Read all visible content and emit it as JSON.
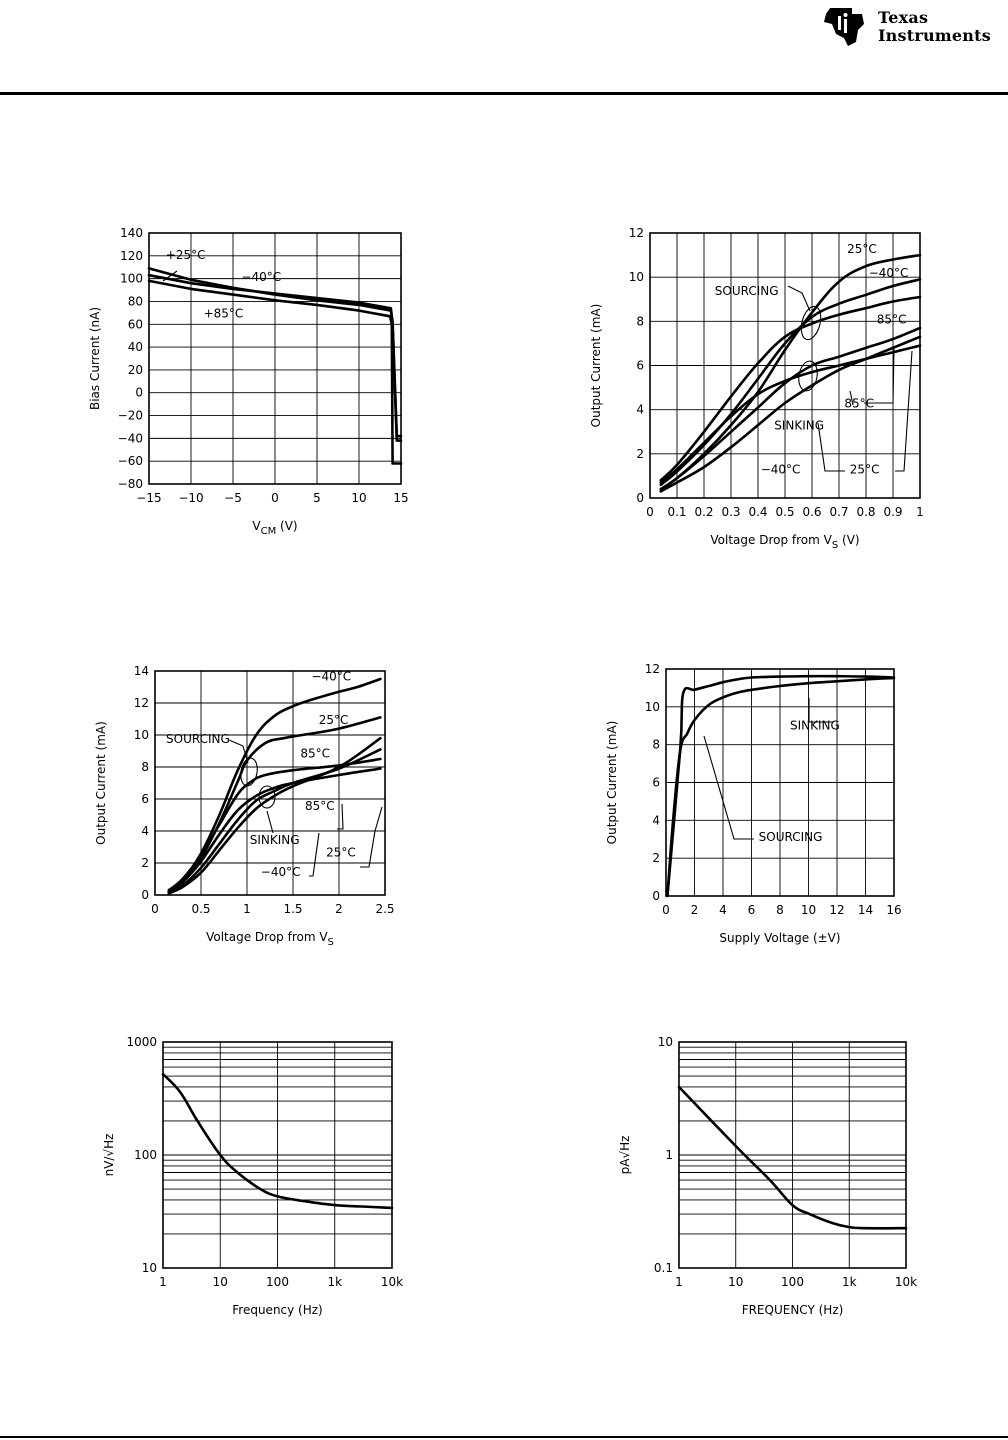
{
  "brand": {
    "line1": "Texas",
    "line2": "Instruments",
    "colors": {
      "logo": "#000000",
      "rule": "#000000"
    }
  },
  "chart_data": [
    {
      "id": "c1",
      "type": "line",
      "grid": true,
      "title": "",
      "xlabel": "V",
      "xlabel_sub": "CM",
      "xlabel_tail": " (V)",
      "ylabel": "Bias Current (nA)",
      "xlim": [
        -15,
        15
      ],
      "ylim": [
        -80,
        140
      ],
      "xticks": [
        -15,
        -10,
        -5,
        0,
        5,
        10,
        15
      ],
      "xticklabels": [
        "−15",
        "−10",
        "−5",
        "0",
        "5",
        "10",
        "15"
      ],
      "yticks": [
        -80,
        -60,
        -40,
        -20,
        0,
        20,
        40,
        60,
        80,
        100,
        120,
        140
      ],
      "yticklabels": [
        "−80",
        "−60",
        "−40",
        "−20",
        "0",
        "20",
        "40",
        "60",
        "80",
        "100",
        "120",
        "140"
      ],
      "series": [
        {
          "name": "+25°C",
          "x": [
            -15,
            -10,
            -5,
            0,
            5,
            10,
            13.8,
            14,
            14.5,
            15
          ],
          "y": [
            109,
            99,
            92,
            86,
            81,
            77,
            72,
            62,
            -38,
            -38
          ]
        },
        {
          "name": "−40°C",
          "x": [
            -15,
            -10,
            -5,
            0,
            5,
            10,
            13.8,
            14,
            14.5,
            15
          ],
          "y": [
            103,
            96,
            91,
            87,
            83,
            79,
            74,
            60,
            -42,
            -42
          ]
        },
        {
          "name": "+85°C",
          "x": [
            -15,
            -10,
            -5,
            0,
            5,
            10,
            13.7,
            13.9,
            14,
            15
          ],
          "y": [
            98,
            91,
            86,
            81,
            77,
            72,
            67,
            60,
            -62,
            -62
          ]
        }
      ],
      "annotations": [
        {
          "text": "+25°C",
          "x": -13,
          "y": 117
        },
        {
          "text": "−40°C",
          "x": -4,
          "y": 98
        },
        {
          "text": "+85°C",
          "x": -8.5,
          "y": 66
        }
      ]
    },
    {
      "id": "c2",
      "type": "line",
      "grid": true,
      "title": "",
      "xlabel": "Voltage Drop from V",
      "xlabel_sub": "S",
      "xlabel_tail": " (V)",
      "ylabel": "Output Current (mA)",
      "xlim": [
        0,
        1
      ],
      "ylim": [
        0,
        12
      ],
      "xticks": [
        0,
        0.1,
        0.2,
        0.3,
        0.4,
        0.5,
        0.6,
        0.7,
        0.8,
        0.9,
        1
      ],
      "xticklabels": [
        "0",
        "0.1",
        "0.2",
        "0.3",
        "0.4",
        "0.5",
        "0.6",
        "0.7",
        "0.8",
        "0.9",
        "1"
      ],
      "yticks": [
        0,
        2,
        4,
        6,
        8,
        10,
        12
      ],
      "yticklabels": [
        "0",
        "2",
        "4",
        "6",
        "8",
        "10",
        "12"
      ],
      "series": [
        {
          "name": "SOURCING 25°C",
          "x": [
            0.04,
            0.1,
            0.2,
            0.3,
            0.4,
            0.5,
            0.6,
            0.7,
            0.8,
            0.9,
            1
          ],
          "y": [
            0.4,
            0.9,
            2.0,
            3.3,
            4.8,
            6.7,
            8.4,
            9.8,
            10.5,
            10.8,
            11.0
          ]
        },
        {
          "name": "SOURCING −40°C",
          "x": [
            0.04,
            0.1,
            0.2,
            0.3,
            0.4,
            0.5,
            0.6,
            0.7,
            0.8,
            0.9,
            1
          ],
          "y": [
            0.6,
            1.2,
            2.4,
            3.8,
            5.4,
            7.0,
            8.2,
            8.8,
            9.2,
            9.6,
            9.9
          ]
        },
        {
          "name": "SOURCING 85°C",
          "x": [
            0.04,
            0.1,
            0.2,
            0.3,
            0.4,
            0.5,
            0.6,
            0.7,
            0.8,
            0.9,
            1
          ],
          "y": [
            0.8,
            1.5,
            3.0,
            4.6,
            6.1,
            7.3,
            7.9,
            8.3,
            8.6,
            8.9,
            9.1
          ]
        },
        {
          "name": "SINKING 85°C",
          "x": [
            0.04,
            0.1,
            0.2,
            0.3,
            0.4,
            0.5,
            0.6,
            0.7,
            0.8,
            0.9,
            1
          ],
          "y": [
            0.7,
            1.3,
            2.5,
            3.7,
            4.7,
            5.3,
            5.7,
            6.0,
            6.3,
            6.6,
            6.9
          ]
        },
        {
          "name": "SINKING −40°C",
          "x": [
            0.04,
            0.1,
            0.2,
            0.3,
            0.4,
            0.5,
            0.6,
            0.7,
            0.8,
            0.9,
            1
          ],
          "y": [
            0.4,
            0.9,
            1.9,
            3.0,
            4.1,
            5.2,
            6.0,
            6.4,
            6.8,
            7.2,
            7.7
          ]
        },
        {
          "name": "SINKING 25°C",
          "x": [
            0.04,
            0.1,
            0.2,
            0.3,
            0.4,
            0.5,
            0.6,
            0.7,
            0.8,
            0.9,
            1
          ],
          "y": [
            0.3,
            0.7,
            1.4,
            2.3,
            3.3,
            4.3,
            5.1,
            5.8,
            6.3,
            6.8,
            7.3
          ]
        }
      ],
      "annotations": [
        {
          "text": "25°C",
          "x": 0.73,
          "y": 11.1
        },
        {
          "text": "−40°C",
          "x": 0.81,
          "y": 10.0
        },
        {
          "text": "SOURCING",
          "x": 0.24,
          "y": 9.2
        },
        {
          "text": "85°C",
          "x": 0.84,
          "y": 7.9
        },
        {
          "text": "85°C",
          "x": 0.72,
          "y": 4.1
        },
        {
          "text": "SINKING",
          "x": 0.46,
          "y": 3.1
        },
        {
          "text": "−40°C",
          "x": 0.41,
          "y": 1.1
        },
        {
          "text": "25°C",
          "x": 0.74,
          "y": 1.1
        }
      ]
    },
    {
      "id": "c3",
      "type": "line",
      "grid": true,
      "title": "",
      "xlabel": "Voltage Drop from V",
      "xlabel_sub": "S",
      "xlabel_tail": "",
      "ylabel": "Output Current (mA)",
      "xlim": [
        0,
        2.5
      ],
      "ylim": [
        0,
        14
      ],
      "xticks": [
        0,
        0.5,
        1,
        1.5,
        2,
        2.5
      ],
      "xticklabels": [
        "0",
        "0.5",
        "1",
        "1.5",
        "2",
        "2.5"
      ],
      "yticks": [
        0,
        2,
        4,
        6,
        8,
        10,
        12,
        14
      ],
      "yticklabels": [
        "0",
        "2",
        "4",
        "6",
        "8",
        "10",
        "12",
        "14"
      ],
      "series": [
        {
          "name": "SOURCING −40°C",
          "x": [
            0.15,
            0.3,
            0.5,
            0.7,
            0.9,
            1.1,
            1.3,
            1.5,
            1.7,
            2.0,
            2.2,
            2.45
          ],
          "y": [
            0.2,
            0.9,
            2.6,
            5.0,
            7.8,
            10.0,
            11.2,
            11.8,
            12.2,
            12.7,
            13.0,
            13.5
          ]
        },
        {
          "name": "SOURCING 25°C",
          "x": [
            0.15,
            0.3,
            0.5,
            0.7,
            0.9,
            1.0,
            1.2,
            1.4,
            1.6,
            2.0,
            2.45
          ],
          "y": [
            0.2,
            0.8,
            2.3,
            4.5,
            7.1,
            8.4,
            9.5,
            9.8,
            10.0,
            10.4,
            11.1
          ]
        },
        {
          "name": "SOURCING 85°C",
          "x": [
            0.15,
            0.3,
            0.5,
            0.7,
            0.9,
            1.05,
            1.2,
            1.5,
            2.0,
            2.45
          ],
          "y": [
            0.3,
            1.0,
            2.5,
            4.4,
            6.3,
            7.1,
            7.5,
            7.8,
            8.1,
            8.5
          ]
        },
        {
          "name": "SINKING 85°C",
          "x": [
            0.15,
            0.3,
            0.5,
            0.7,
            0.9,
            1.1,
            1.3,
            1.5,
            2.0,
            2.45
          ],
          "y": [
            0.2,
            0.8,
            2.1,
            3.8,
            5.3,
            6.2,
            6.7,
            7.0,
            7.5,
            7.9
          ]
        },
        {
          "name": "SINKING −40°C",
          "x": [
            0.15,
            0.3,
            0.5,
            0.7,
            0.9,
            1.1,
            1.3,
            1.5,
            2.0,
            2.45
          ],
          "y": [
            0.2,
            0.6,
            1.7,
            3.2,
            4.7,
            5.9,
            6.5,
            7.0,
            7.9,
            9.1
          ]
        },
        {
          "name": "SINKING 25°C",
          "x": [
            0.15,
            0.3,
            0.5,
            0.7,
            0.9,
            1.1,
            1.3,
            1.5,
            2.0,
            2.45
          ],
          "y": [
            0.1,
            0.5,
            1.4,
            2.8,
            4.2,
            5.4,
            6.2,
            6.8,
            8.0,
            9.8
          ]
        }
      ],
      "annotations": [
        {
          "text": "−40°C",
          "x": 1.7,
          "y": 13.4
        },
        {
          "text": "25°C",
          "x": 1.78,
          "y": 10.7
        },
        {
          "text": "SOURCING",
          "x": 0.12,
          "y": 9.5
        },
        {
          "text": "85°C",
          "x": 1.58,
          "y": 8.6
        },
        {
          "text": "85°C",
          "x": 1.63,
          "y": 5.3
        },
        {
          "text": "SINKING",
          "x": 1.03,
          "y": 3.2
        },
        {
          "text": "25°C",
          "x": 1.86,
          "y": 2.4
        },
        {
          "text": "−40°C",
          "x": 1.15,
          "y": 1.2
        }
      ]
    },
    {
      "id": "c4",
      "type": "line",
      "grid": true,
      "title": "",
      "xlabel": "Supply Voltage (±V)",
      "xlabel_sub": "",
      "xlabel_tail": "",
      "ylabel": "Output Current (mA)",
      "xlim": [
        0,
        16
      ],
      "ylim": [
        0,
        12
      ],
      "xticks": [
        0,
        2,
        4,
        6,
        8,
        10,
        12,
        14,
        16
      ],
      "xticklabels": [
        "0",
        "2",
        "4",
        "6",
        "8",
        "10",
        "12",
        "14",
        "16"
      ],
      "yticks": [
        0,
        2,
        4,
        6,
        8,
        10,
        12
      ],
      "yticklabels": [
        "0",
        "2",
        "4",
        "6",
        "8",
        "10",
        "12"
      ],
      "series": [
        {
          "name": "SOURCING",
          "x": [
            0.1,
            1.0,
            1.2,
            2,
            3,
            4,
            5,
            6,
            8,
            10,
            12,
            14,
            16
          ],
          "y": [
            0,
            7.8,
            10.7,
            10.9,
            11.1,
            11.3,
            11.45,
            11.55,
            11.6,
            11.62,
            11.62,
            11.6,
            11.55
          ]
        },
        {
          "name": "SINKING",
          "x": [
            0.1,
            0.5,
            1,
            1.5,
            2,
            3,
            4,
            5,
            6,
            8,
            10,
            12,
            14,
            16
          ],
          "y": [
            0,
            4.0,
            7.7,
            8.6,
            9.3,
            10.1,
            10.5,
            10.75,
            10.9,
            11.1,
            11.25,
            11.35,
            11.45,
            11.52
          ]
        }
      ],
      "annotations": [
        {
          "text": "SINKING",
          "x": 8.7,
          "y": 8.8
        },
        {
          "text": "SOURCING",
          "x": 6.5,
          "y": 2.9
        }
      ]
    },
    {
      "id": "c5",
      "type": "line",
      "grid": true,
      "xscale": "log",
      "yscale": "log",
      "title": "",
      "xlabel": "Frequency (Hz)",
      "xlabel_sub": "",
      "xlabel_tail": "",
      "ylabel": "nV/√Hz",
      "xlim": [
        1,
        10000
      ],
      "ylim": [
        10,
        1000
      ],
      "xticks": [
        1,
        10,
        100,
        1000,
        10000
      ],
      "xticklabels": [
        "1",
        "10",
        "100",
        "1k",
        "10k"
      ],
      "yticks": [
        10,
        100,
        1000
      ],
      "yticklabels": [
        "10",
        "100",
        "1000"
      ],
      "series": [
        {
          "name": "",
          "x": [
            1,
            2,
            4,
            10,
            20,
            50,
            100,
            300,
            1000,
            3000,
            10000
          ],
          "y": [
            520,
            360,
            200,
            100,
            70,
            50,
            43,
            39,
            36,
            35,
            34
          ]
        }
      ],
      "annotations": []
    },
    {
      "id": "c6",
      "type": "line",
      "grid": true,
      "xscale": "log",
      "yscale": "log",
      "title": "",
      "xlabel": "FREQUENCY (Hz)",
      "xlabel_sub": "",
      "xlabel_tail": "",
      "ylabel": "pA√Hz",
      "xlim": [
        1,
        10000
      ],
      "ylim": [
        0.1,
        10
      ],
      "xticks": [
        1,
        10,
        100,
        1000,
        10000
      ],
      "xticklabels": [
        "1",
        "10",
        "100",
        "1k",
        "10k"
      ],
      "yticks": [
        0.1,
        1,
        10
      ],
      "yticklabels": [
        "0.1",
        "1",
        "10"
      ],
      "series": [
        {
          "name": "",
          "x": [
            1,
            10,
            40,
            100,
            200,
            500,
            1000,
            2000,
            10000
          ],
          "y": [
            4,
            1.2,
            0.6,
            0.36,
            0.3,
            0.25,
            0.23,
            0.225,
            0.225
          ]
        }
      ],
      "annotations": []
    }
  ]
}
